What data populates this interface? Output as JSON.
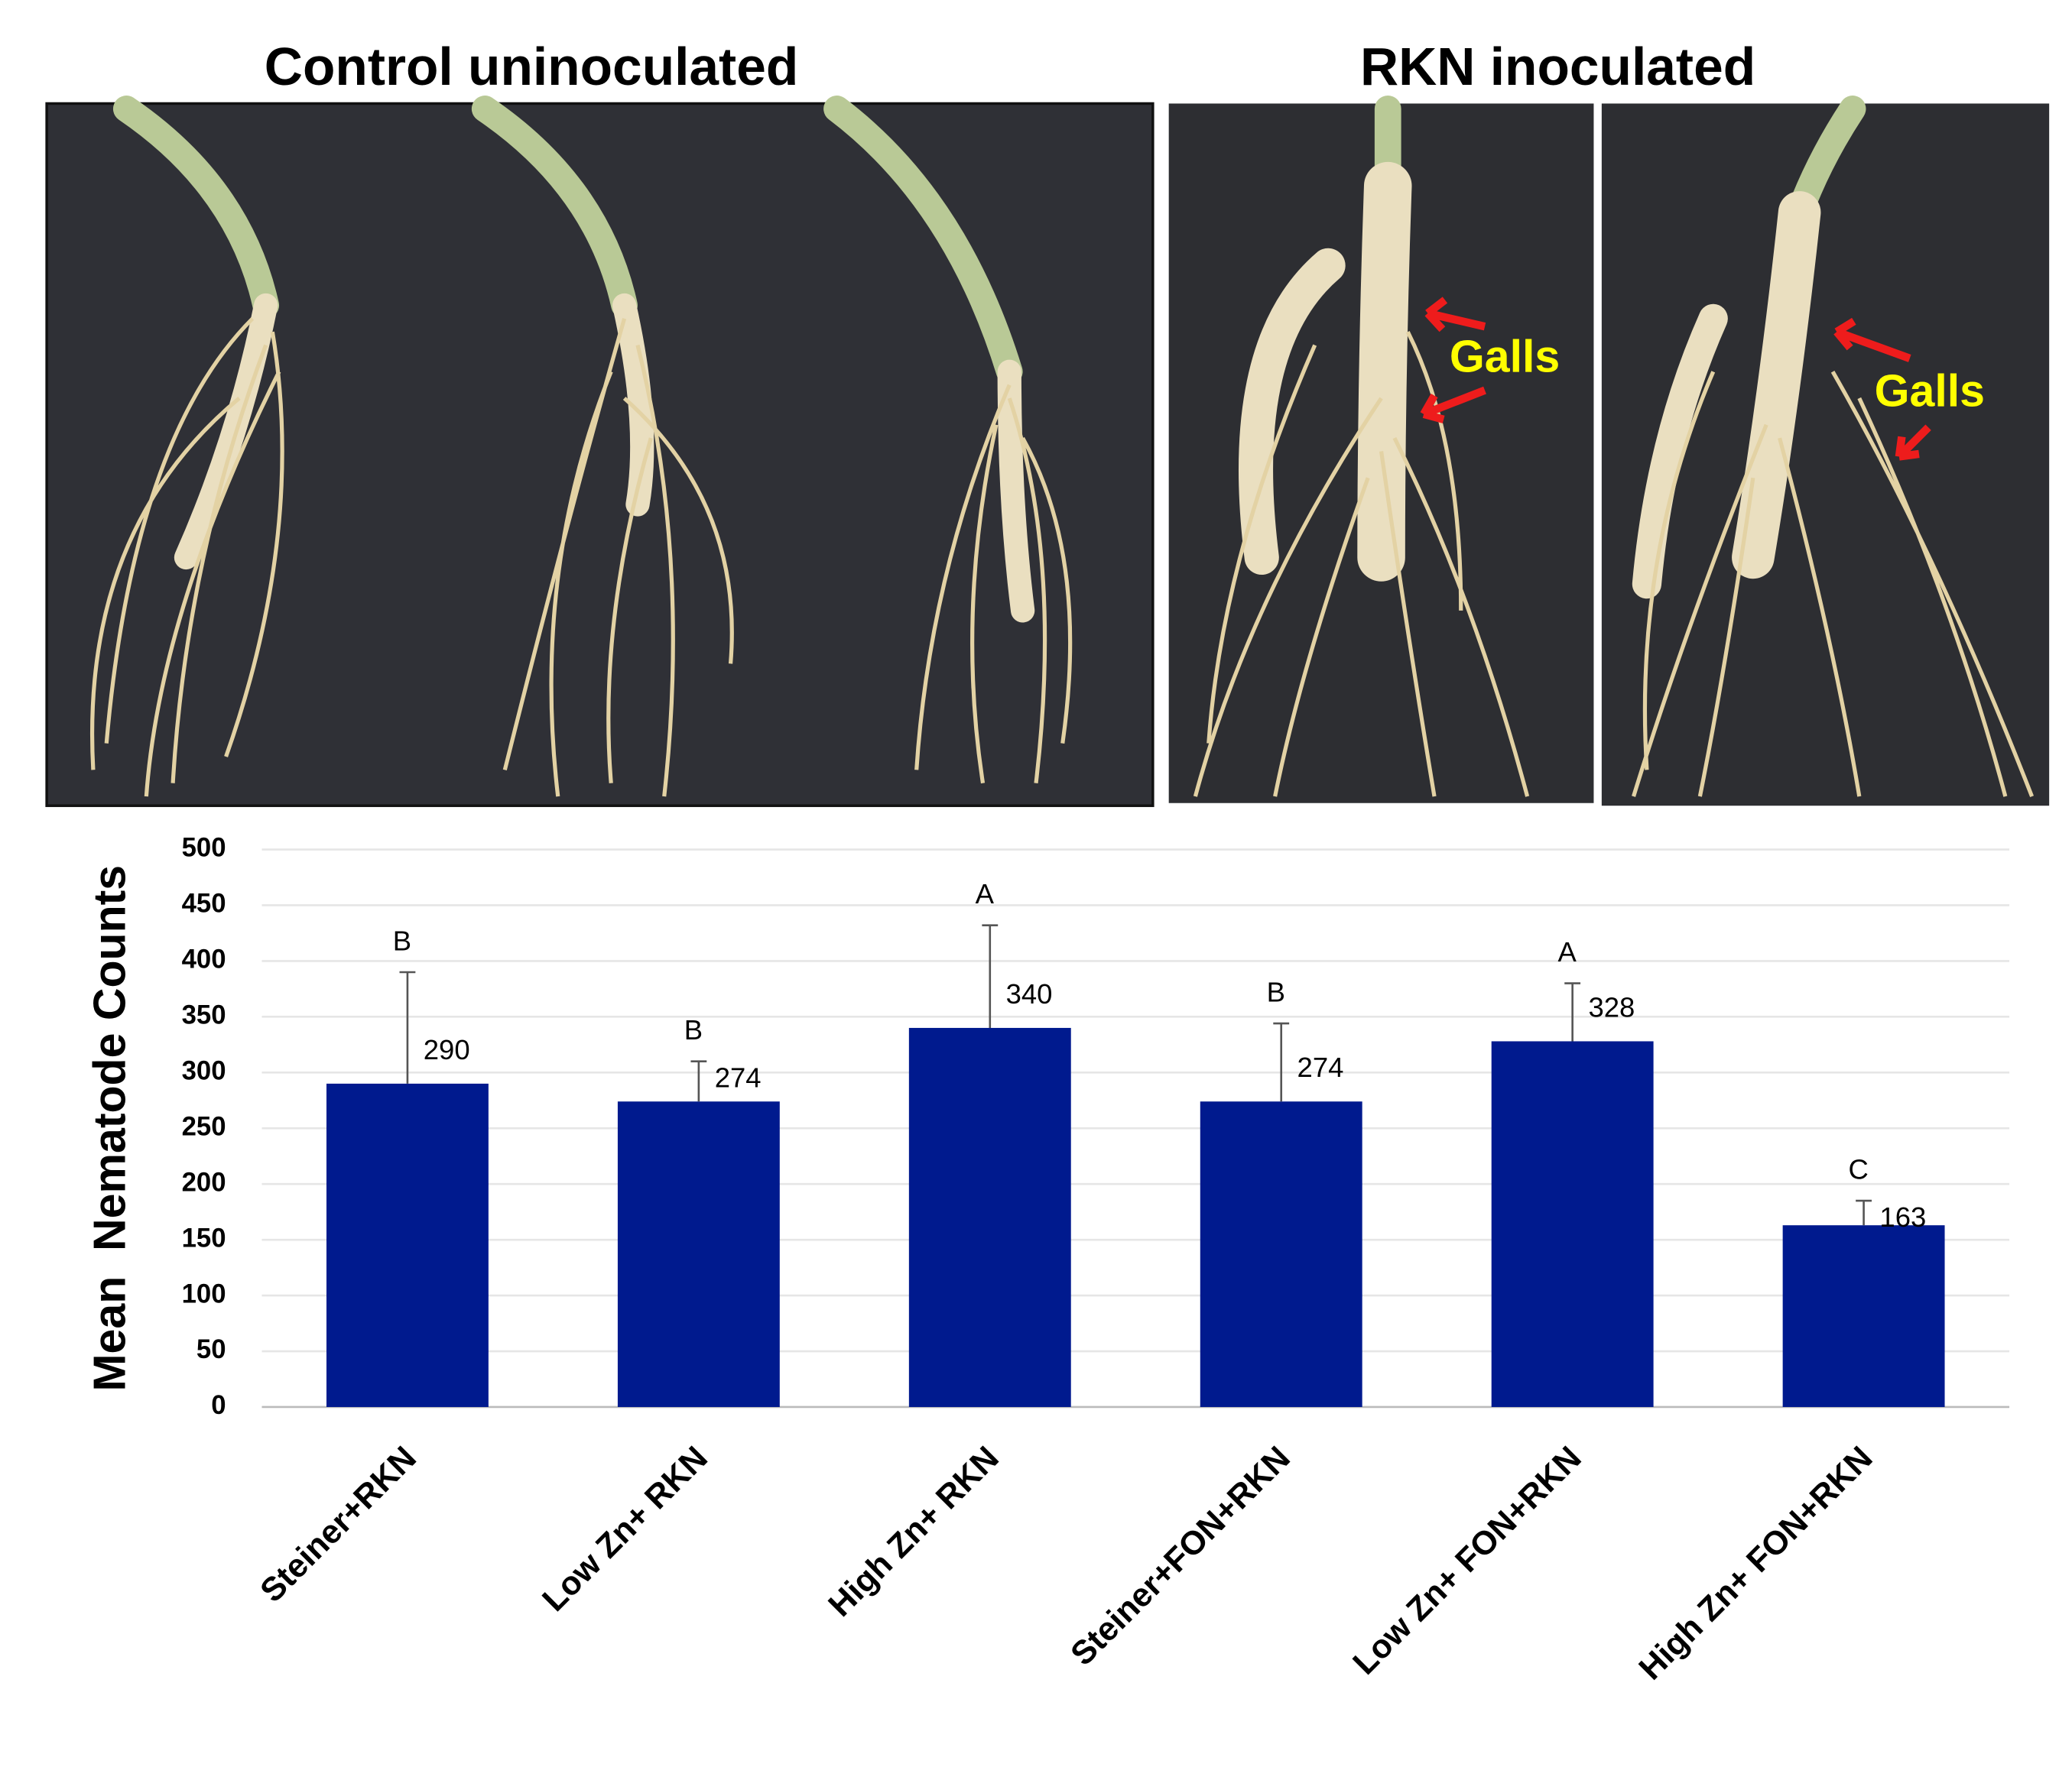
{
  "photos": {
    "left_title": "Control uninoculated",
    "right_title": "RKN inoculated",
    "annotations": [
      "Galls",
      "Galls"
    ]
  },
  "chart_data": {
    "type": "bar",
    "y_label": "Mean  Nematode Counts",
    "categories": [
      "Steiner+RKN",
      "Low Zn+ RKN",
      "High Zn+ RKN",
      "Steiner+FON+RKN",
      "Low Zn+ FON+RKN",
      "High Zn+ FON+RKN"
    ],
    "values": [
      290,
      274,
      340,
      274,
      328,
      163
    ],
    "errors": [
      100,
      36,
      92,
      70,
      52,
      22
    ],
    "significance_letters": [
      "B",
      "B",
      "A",
      "B",
      "A",
      "C"
    ],
    "color": "#001a8e",
    "ylim": [
      0,
      500
    ],
    "yticks": [
      0,
      50,
      100,
      150,
      200,
      250,
      300,
      350,
      400,
      450,
      500
    ],
    "grid": true
  }
}
